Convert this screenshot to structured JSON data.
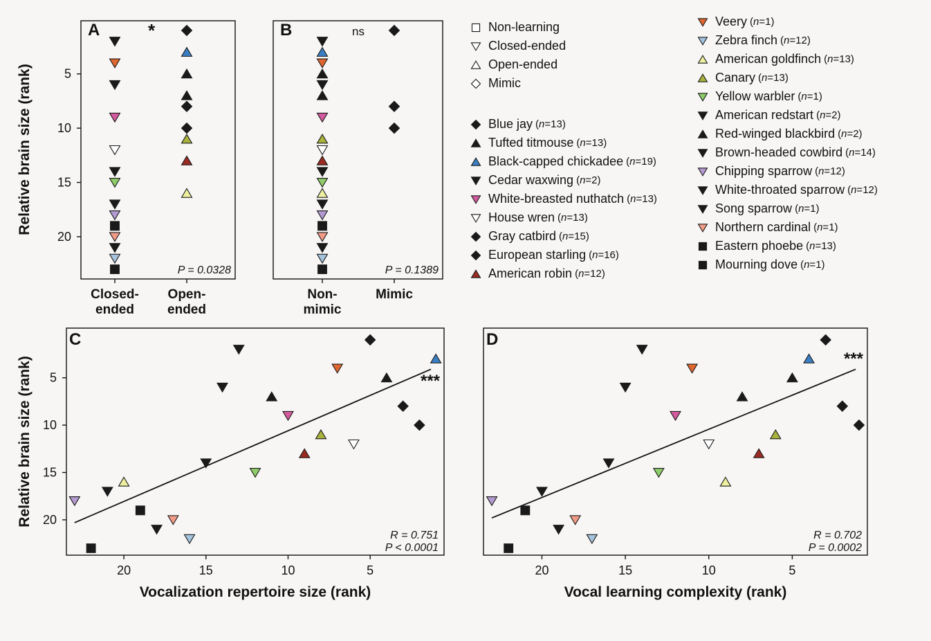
{
  "y_axis_label": "Relative brain size (rank)",
  "species": [
    {
      "key": "blue_jay",
      "name": "Blue jay",
      "n": "13",
      "marker": "diamond",
      "color": "#1a1a1a"
    },
    {
      "key": "tufted_titmouse",
      "name": "Tufted titmouse",
      "n": "13",
      "marker": "up",
      "color": "#1a1a1a"
    },
    {
      "key": "bc_chickadee",
      "name": "Black-capped chickadee",
      "n": "19",
      "marker": "up",
      "color": "#3a7fc4"
    },
    {
      "key": "cedar_waxwing",
      "name": "Cedar waxwing",
      "n": "2",
      "marker": "down",
      "color": "#1a1a1a"
    },
    {
      "key": "wb_nuthatch",
      "name": "White-breasted nuthatch",
      "n": "13",
      "marker": "down",
      "color": "#d35a9e"
    },
    {
      "key": "house_wren",
      "name": "House wren",
      "n": "13",
      "marker": "down",
      "color": "#ffffff"
    },
    {
      "key": "gray_catbird",
      "name": "Gray catbird",
      "n": "15",
      "marker": "diamond",
      "color": "#1a1a1a"
    },
    {
      "key": "eu_starling",
      "name": "European starling",
      "n": "16",
      "marker": "diamond",
      "color": "#1a1a1a"
    },
    {
      "key": "am_robin",
      "name": "American robin",
      "n": "12",
      "marker": "up",
      "color": "#9b2b22"
    },
    {
      "key": "veery",
      "name": "Veery",
      "n": "1",
      "marker": "down",
      "color": "#e0662f"
    },
    {
      "key": "zebra_finch",
      "name": "Zebra finch",
      "n": "12",
      "marker": "down",
      "color": "#a5c3dc"
    },
    {
      "key": "am_goldfinch",
      "name": "American goldfinch",
      "n": "13",
      "marker": "up",
      "color": "#eef0a0"
    },
    {
      "key": "canary",
      "name": "Canary",
      "n": "13",
      "marker": "up",
      "color": "#a8b23c"
    },
    {
      "key": "yellow_warbler",
      "name": "Yellow warbler",
      "n": "1",
      "marker": "down",
      "color": "#8fcc6a"
    },
    {
      "key": "am_redstart",
      "name": "American redstart",
      "n": "2",
      "marker": "down",
      "color": "#1a1a1a"
    },
    {
      "key": "rw_blackbird",
      "name": "Red-winged blackbird",
      "n": "2",
      "marker": "up",
      "color": "#1a1a1a"
    },
    {
      "key": "bh_cowbird",
      "name": "Brown-headed cowbird",
      "n": "14",
      "marker": "down",
      "color": "#1a1a1a"
    },
    {
      "key": "chipping_sparrow",
      "name": "Chipping sparrow",
      "n": "12",
      "marker": "down",
      "color": "#b49ad1"
    },
    {
      "key": "wt_sparrow",
      "name": "White-throated sparrow",
      "n": "12",
      "marker": "down",
      "color": "#1a1a1a"
    },
    {
      "key": "song_sparrow",
      "name": "Song sparrow",
      "n": "1",
      "marker": "down",
      "color": "#1a1a1a"
    },
    {
      "key": "no_cardinal",
      "name": "Northern cardinal",
      "n": "1",
      "marker": "down",
      "color": "#f29c88"
    },
    {
      "key": "eastern_phoebe",
      "name": "Eastern phoebe",
      "n": "13",
      "marker": "square",
      "color": "#1a1a1a"
    },
    {
      "key": "mourning_dove",
      "name": "Mourning dove",
      "n": "1",
      "marker": "square",
      "color": "#1a1a1a"
    }
  ],
  "legend_types": [
    {
      "label": "Non-learning",
      "marker": "square"
    },
    {
      "label": "Closed-ended",
      "marker": "down"
    },
    {
      "label": "Open-ended",
      "marker": "up"
    },
    {
      "label": "Mimic",
      "marker": "diamond"
    }
  ],
  "chart_data": [
    {
      "panel": "A",
      "type": "scatter",
      "ylabel": "Relative brain size (rank)",
      "categories": [
        "Closed-\nended",
        "Open-\nended"
      ],
      "yticks": [
        5,
        10,
        15,
        20
      ],
      "y_reversed": true,
      "ylim": [
        0.5,
        23.5
      ],
      "significance": "*",
      "p_label": "P = 0.0328",
      "points": [
        {
          "species": "cedar_waxwing",
          "cat": 0,
          "y": 2
        },
        {
          "species": "veery",
          "cat": 0,
          "y": 4
        },
        {
          "species": "am_redstart",
          "cat": 0,
          "y": 6
        },
        {
          "species": "wb_nuthatch",
          "cat": 0,
          "y": 9
        },
        {
          "species": "house_wren",
          "cat": 0,
          "y": 12
        },
        {
          "species": "wt_sparrow",
          "cat": 0,
          "y": 14
        },
        {
          "species": "yellow_warbler",
          "cat": 0,
          "y": 15
        },
        {
          "species": "bh_cowbird",
          "cat": 0,
          "y": 17
        },
        {
          "species": "chipping_sparrow",
          "cat": 0,
          "y": 18
        },
        {
          "species": "eastern_phoebe",
          "cat": 0,
          "y": 19
        },
        {
          "species": "no_cardinal",
          "cat": 0,
          "y": 20
        },
        {
          "species": "song_sparrow",
          "cat": 0,
          "y": 21
        },
        {
          "species": "zebra_finch",
          "cat": 0,
          "y": 22
        },
        {
          "species": "mourning_dove",
          "cat": 0,
          "y": 23
        },
        {
          "species": "blue_jay",
          "cat": 1,
          "y": 1
        },
        {
          "species": "bc_chickadee",
          "cat": 1,
          "y": 3
        },
        {
          "species": "tufted_titmouse",
          "cat": 1,
          "y": 5
        },
        {
          "species": "rw_blackbird",
          "cat": 1,
          "y": 7
        },
        {
          "species": "gray_catbird",
          "cat": 1,
          "y": 8
        },
        {
          "species": "eu_starling",
          "cat": 1,
          "y": 10
        },
        {
          "species": "canary",
          "cat": 1,
          "y": 11
        },
        {
          "species": "am_robin",
          "cat": 1,
          "y": 13
        },
        {
          "species": "am_goldfinch",
          "cat": 1,
          "y": 16
        }
      ]
    },
    {
      "panel": "B",
      "type": "scatter",
      "ylabel": "",
      "categories": [
        "Non-\nmimic",
        "Mimic"
      ],
      "yticks": [],
      "y_reversed": true,
      "ylim": [
        0.5,
        23.5
      ],
      "significance": "ns",
      "p_label": "P = 0.1389",
      "points": [
        {
          "species": "cedar_waxwing",
          "cat": 0,
          "y": 2
        },
        {
          "species": "bc_chickadee",
          "cat": 0,
          "y": 3
        },
        {
          "species": "veery",
          "cat": 0,
          "y": 4
        },
        {
          "species": "tufted_titmouse",
          "cat": 0,
          "y": 5
        },
        {
          "species": "am_redstart",
          "cat": 0,
          "y": 6
        },
        {
          "species": "rw_blackbird",
          "cat": 0,
          "y": 7
        },
        {
          "species": "wb_nuthatch",
          "cat": 0,
          "y": 9
        },
        {
          "species": "canary",
          "cat": 0,
          "y": 11
        },
        {
          "species": "house_wren",
          "cat": 0,
          "y": 12
        },
        {
          "species": "am_robin",
          "cat": 0,
          "y": 13
        },
        {
          "species": "wt_sparrow",
          "cat": 0,
          "y": 14
        },
        {
          "species": "yellow_warbler",
          "cat": 0,
          "y": 15
        },
        {
          "species": "am_goldfinch",
          "cat": 0,
          "y": 16
        },
        {
          "species": "bh_cowbird",
          "cat": 0,
          "y": 17
        },
        {
          "species": "chipping_sparrow",
          "cat": 0,
          "y": 18
        },
        {
          "species": "eastern_phoebe",
          "cat": 0,
          "y": 19
        },
        {
          "species": "no_cardinal",
          "cat": 0,
          "y": 20
        },
        {
          "species": "song_sparrow",
          "cat": 0,
          "y": 21
        },
        {
          "species": "zebra_finch",
          "cat": 0,
          "y": 22
        },
        {
          "species": "mourning_dove",
          "cat": 0,
          "y": 23
        },
        {
          "species": "blue_jay",
          "cat": 1,
          "y": 1
        },
        {
          "species": "gray_catbird",
          "cat": 1,
          "y": 8
        },
        {
          "species": "eu_starling",
          "cat": 1,
          "y": 10
        }
      ]
    },
    {
      "panel": "C",
      "type": "scatter",
      "xlabel": "Vocalization repertoire size (rank)",
      "ylabel": "Relative brain size (rank)",
      "xticks": [
        20,
        15,
        10,
        5
      ],
      "yticks": [
        5,
        10,
        15,
        20
      ],
      "x_reversed": true,
      "y_reversed": true,
      "xlim": [
        23.5,
        0.5
      ],
      "ylim": [
        0.5,
        23.5
      ],
      "significance": "***",
      "r_label": "R = 0.751",
      "p_label": "P < 0.0001",
      "fit_line": {
        "x1": 23,
        "y1": 20.3,
        "x2": 1.3,
        "y2": 4.1
      },
      "points": [
        {
          "species": "chipping_sparrow",
          "x": 23,
          "y": 18
        },
        {
          "species": "mourning_dove",
          "x": 22,
          "y": 23
        },
        {
          "species": "bh_cowbird",
          "x": 21,
          "y": 17
        },
        {
          "species": "am_goldfinch",
          "x": 20,
          "y": 16
        },
        {
          "species": "eastern_phoebe",
          "x": 19,
          "y": 19
        },
        {
          "species": "song_sparrow",
          "x": 18,
          "y": 21
        },
        {
          "species": "no_cardinal",
          "x": 17,
          "y": 20
        },
        {
          "species": "zebra_finch",
          "x": 16,
          "y": 22
        },
        {
          "species": "wt_sparrow",
          "x": 15,
          "y": 14
        },
        {
          "species": "am_redstart",
          "x": 14,
          "y": 6
        },
        {
          "species": "cedar_waxwing",
          "x": 13,
          "y": 2
        },
        {
          "species": "yellow_warbler",
          "x": 12,
          "y": 15
        },
        {
          "species": "rw_blackbird",
          "x": 11,
          "y": 7
        },
        {
          "species": "wb_nuthatch",
          "x": 10,
          "y": 9
        },
        {
          "species": "am_robin",
          "x": 9,
          "y": 13
        },
        {
          "species": "canary",
          "x": 8,
          "y": 11
        },
        {
          "species": "veery",
          "x": 7,
          "y": 4
        },
        {
          "species": "house_wren",
          "x": 6,
          "y": 12
        },
        {
          "species": "blue_jay",
          "x": 5,
          "y": 1
        },
        {
          "species": "tufted_titmouse",
          "x": 4,
          "y": 5
        },
        {
          "species": "gray_catbird",
          "x": 3,
          "y": 8
        },
        {
          "species": "eu_starling",
          "x": 2,
          "y": 10
        },
        {
          "species": "bc_chickadee",
          "x": 1,
          "y": 3
        }
      ]
    },
    {
      "panel": "D",
      "type": "scatter",
      "xlabel": "Vocal learning complexity (rank)",
      "ylabel": "",
      "xticks": [
        20,
        15,
        10,
        5
      ],
      "yticks": [],
      "x_reversed": true,
      "y_reversed": true,
      "xlim": [
        23.5,
        0.5
      ],
      "ylim": [
        0.5,
        23.5
      ],
      "significance": "***",
      "r_label": "R = 0.702",
      "p_label": "P = 0.0002",
      "fit_line": {
        "x1": 23,
        "y1": 19.8,
        "x2": 1.2,
        "y2": 4.1
      },
      "points": [
        {
          "species": "chipping_sparrow",
          "x": 23,
          "y": 18
        },
        {
          "species": "mourning_dove",
          "x": 22,
          "y": 23
        },
        {
          "species": "eastern_phoebe",
          "x": 21,
          "y": 19
        },
        {
          "species": "bh_cowbird",
          "x": 20,
          "y": 17
        },
        {
          "species": "song_sparrow",
          "x": 19,
          "y": 21
        },
        {
          "species": "no_cardinal",
          "x": 18,
          "y": 20
        },
        {
          "species": "zebra_finch",
          "x": 17,
          "y": 22
        },
        {
          "species": "wt_sparrow",
          "x": 16,
          "y": 14
        },
        {
          "species": "am_redstart",
          "x": 15,
          "y": 6
        },
        {
          "species": "cedar_waxwing",
          "x": 14,
          "y": 2
        },
        {
          "species": "yellow_warbler",
          "x": 13,
          "y": 15
        },
        {
          "species": "wb_nuthatch",
          "x": 12,
          "y": 9
        },
        {
          "species": "veery",
          "x": 11,
          "y": 4
        },
        {
          "species": "house_wren",
          "x": 10,
          "y": 12
        },
        {
          "species": "am_goldfinch",
          "x": 9,
          "y": 16
        },
        {
          "species": "rw_blackbird",
          "x": 8,
          "y": 7
        },
        {
          "species": "am_robin",
          "x": 7,
          "y": 13
        },
        {
          "species": "canary",
          "x": 6,
          "y": 11
        },
        {
          "species": "tufted_titmouse",
          "x": 5,
          "y": 5
        },
        {
          "species": "bc_chickadee",
          "x": 4,
          "y": 3
        },
        {
          "species": "blue_jay",
          "x": 3,
          "y": 1
        },
        {
          "species": "gray_catbird",
          "x": 2,
          "y": 8
        },
        {
          "species": "eu_starling",
          "x": 1,
          "y": 10
        }
      ]
    }
  ]
}
